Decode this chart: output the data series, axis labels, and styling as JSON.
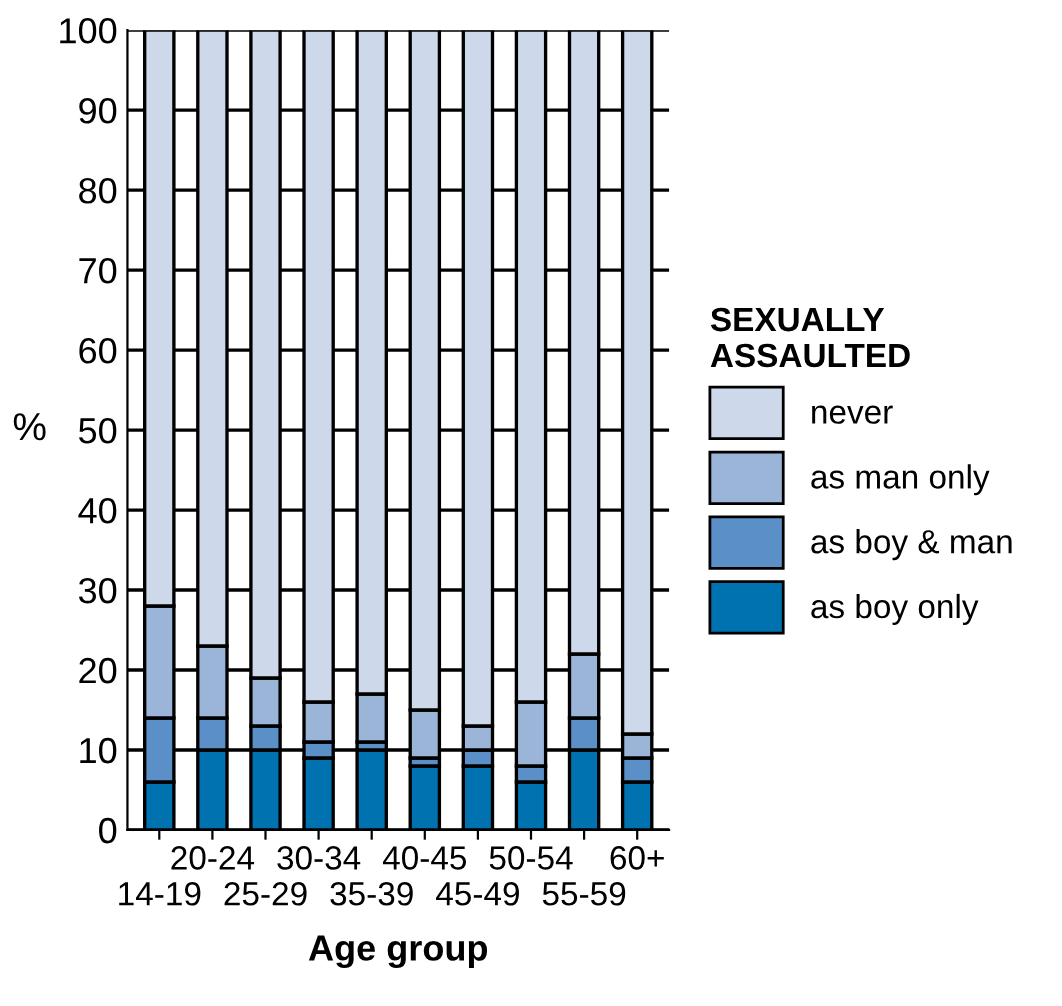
{
  "chart_data": {
    "type": "bar",
    "stacked": true,
    "xlabel": "Age group",
    "ylabel": "%",
    "legend_title": "SEXUALLY\nASSAULTED",
    "categories": [
      "14-19",
      "20-24",
      "25-29",
      "30-34",
      "35-39",
      "40-45",
      "45-49",
      "50-54",
      "55-59",
      "60+"
    ],
    "series": [
      {
        "name": "as boy only",
        "color": "#0072b0",
        "values": [
          6,
          10,
          10,
          9,
          10,
          8,
          8,
          6,
          10,
          6
        ]
      },
      {
        "name": "as boy & man",
        "color": "#5b8fc7",
        "values": [
          8,
          4,
          3,
          2,
          1,
          1,
          2,
          2,
          4,
          3
        ]
      },
      {
        "name": "as man only",
        "color": "#9bb5d9",
        "values": [
          14,
          9,
          6,
          5,
          6,
          6,
          3,
          8,
          8,
          3
        ]
      },
      {
        "name": "never",
        "color": "#cdd8ea",
        "values": [
          72,
          77,
          81,
          84,
          83,
          85,
          87,
          84,
          78,
          88
        ]
      }
    ],
    "ylim": [
      0,
      100
    ],
    "yticks": [
      0,
      10,
      20,
      30,
      40,
      50,
      60,
      70,
      80,
      90,
      100
    ],
    "grid": "y",
    "legend": "right"
  }
}
